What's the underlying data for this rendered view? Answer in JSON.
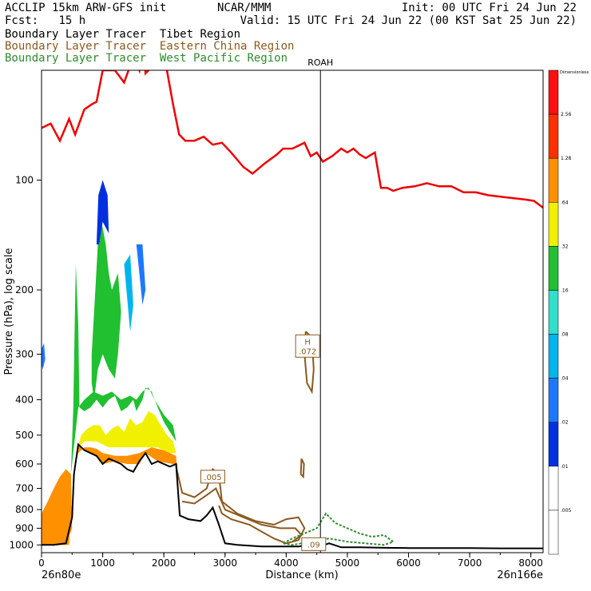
{
  "header": {
    "model": "ACCLIP 15km ARW-GFS init",
    "org": "NCAR/MMM",
    "init": "Init: 00 UTC Fri 24 Jun 22",
    "fcst_label": "Fcst:",
    "fcst_value": "15 h",
    "valid": "Valid: 15 UTC Fri 24 Jun 22 (00 KST Sat 25 Jun 22)"
  },
  "tracers": [
    {
      "label": "Boundary Layer Tracer",
      "region": "Tibet Region",
      "color": "#000000"
    },
    {
      "label": "Boundary Layer Tracer",
      "region": "Eastern China Region",
      "color": "#8a5a1e"
    },
    {
      "label": "Boundary Layer Tracer",
      "region": "West Pacific Region",
      "color": "#2e8b2e"
    }
  ],
  "chart_data": {
    "type": "cross-section",
    "xlabel": "Distance (km)",
    "ylabel": "Pressure (hPa), log scale",
    "x_ticks": [
      0,
      1000,
      2000,
      3000,
      4000,
      5000,
      6000,
      7000,
      8000
    ],
    "y_ticks": [
      100,
      200,
      300,
      400,
      500,
      600,
      700,
      800,
      900,
      1000
    ],
    "xlim": [
      0,
      8200
    ],
    "ylim": [
      1050,
      50
    ],
    "y_scale": "log",
    "left_endpoint": "26n80e",
    "right_endpoint": "26n166e",
    "station": {
      "name": "ROAH",
      "x": 4560
    },
    "contour_labels": [
      {
        "text": "H\n.072",
        "x": 4350,
        "p": 285
      },
      {
        "text": ".005",
        "x": 2800,
        "p": 650
      },
      {
        "text": ".09",
        "x": 4450,
        "p": 995
      }
    ],
    "colorbar": {
      "title": "Dimensionless",
      "levels": [
        ".005",
        ".01",
        ".02",
        ".04",
        ".08",
        ".16",
        ".32",
        ".64",
        "1.28",
        "2.56"
      ],
      "colors": [
        "#ffffff",
        "#ffffff",
        "#0030e0",
        "#1e78ff",
        "#00b4f0",
        "#30e0c8",
        "#20c030",
        "#f0f000",
        "#ff9000",
        "#ff3000",
        "#ff1010"
      ]
    },
    "tropopause": {
      "color": "#ee0000",
      "x": [
        0,
        150,
        300,
        450,
        550,
        700,
        820,
        900,
        1000,
        1100,
        1200,
        1350,
        1500,
        1600,
        1650,
        1700,
        1800,
        1900,
        2050,
        2150,
        2250,
        2350,
        2500,
        2650,
        2800,
        2950,
        3100,
        3300,
        3450,
        3650,
        3850,
        3950,
        4100,
        4300,
        4400,
        4500,
        4600,
        4750,
        4900,
        5000,
        5100,
        5200,
        5300,
        5450,
        5550,
        5650,
        5750,
        5900,
        6100,
        6300,
        6500,
        6700,
        6900,
        7100,
        7300,
        7500,
        7700,
        7900,
        8050,
        8200
      ],
      "p": [
        72,
        70,
        78,
        68,
        75,
        64,
        62,
        61,
        50,
        50,
        50,
        54,
        46,
        50,
        40,
        51,
        49,
        40,
        50,
        62,
        75,
        78,
        78,
        76,
        80,
        79,
        84,
        92,
        96,
        90,
        85,
        82,
        82,
        79,
        86,
        84,
        89,
        86,
        82,
        84,
        82,
        85,
        87,
        84,
        105,
        105,
        107,
        105,
        104,
        102,
        104,
        104,
        108,
        108,
        110,
        111,
        112,
        113,
        114,
        119
      ]
    },
    "terrain": {
      "color": "#000000",
      "x": [
        0,
        200,
        400,
        500,
        530,
        600,
        700,
        800,
        900,
        1000,
        1100,
        1200,
        1300,
        1400,
        1500,
        1600,
        1700,
        1800,
        1900,
        2000,
        2100,
        2200,
        2260,
        2400,
        2600,
        2700,
        2800,
        2900,
        3000,
        3200,
        3400,
        3600,
        3800,
        4000,
        4200,
        4300,
        4400,
        4550,
        4700,
        4900,
        5200,
        5600,
        6000,
        6500,
        7000,
        7500,
        8000,
        8200
      ],
      "p": [
        1000,
        1000,
        990,
        840,
        640,
        530,
        550,
        560,
        570,
        600,
        580,
        590,
        600,
        620,
        630,
        590,
        560,
        600,
        590,
        600,
        610,
        600,
        830,
        850,
        860,
        830,
        790,
        880,
        990,
        1000,
        1005,
        1010,
        1010,
        1010,
        1010,
        1005,
        1010,
        1010,
        990,
        1015,
        1015,
        1018,
        1020,
        1020,
        1020,
        1022,
        1022,
        1022
      ]
    }
  }
}
